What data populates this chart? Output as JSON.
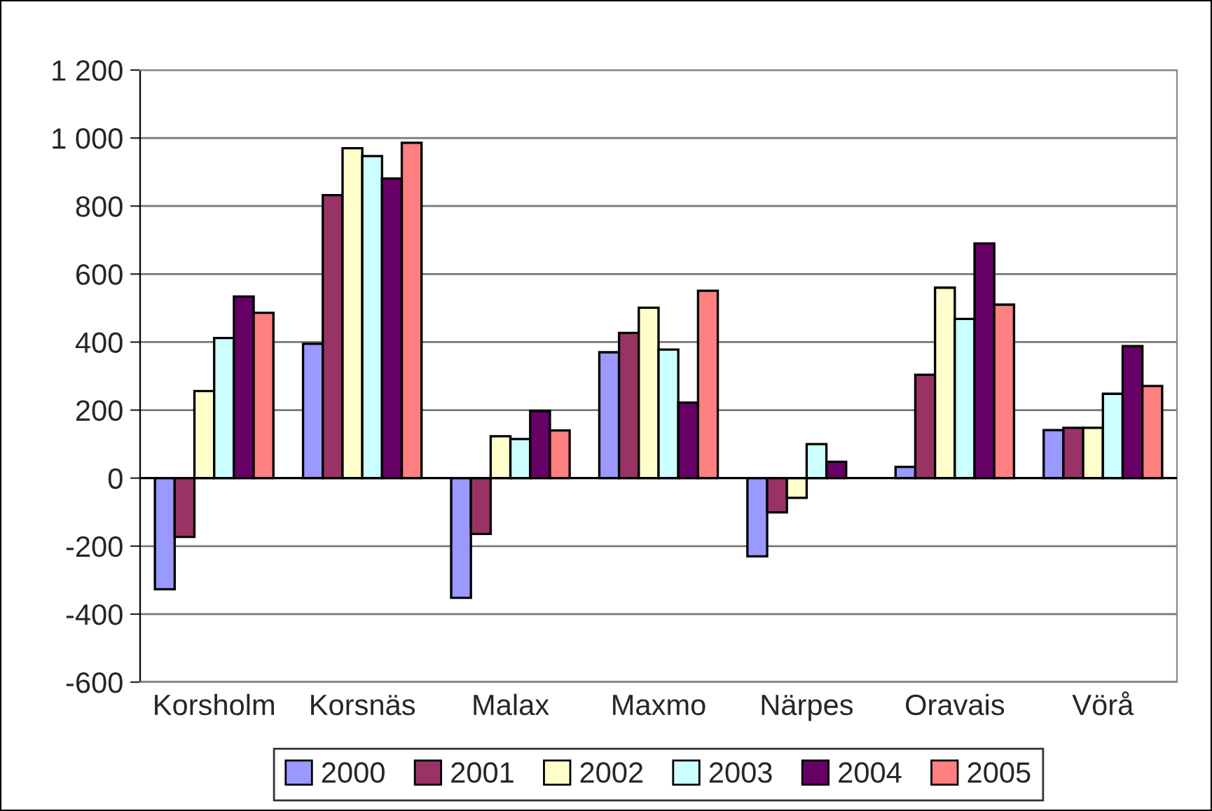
{
  "chart_data": {
    "type": "bar",
    "categories": [
      "Korsholm",
      "Korsnäs",
      "Malax",
      "Maxmo",
      "Närpes",
      "Oravais",
      "Vörå"
    ],
    "series": [
      {
        "name": "2000",
        "color": "#9999ff",
        "values": [
          -327,
          395,
          -352,
          370,
          -230,
          33,
          141
        ]
      },
      {
        "name": "2001",
        "color": "#993366",
        "values": [
          -173,
          832,
          -164,
          427,
          -101,
          304,
          148
        ]
      },
      {
        "name": "2002",
        "color": "#ffffcc",
        "values": [
          256,
          970,
          123,
          501,
          -58,
          560,
          148
        ]
      },
      {
        "name": "2003",
        "color": "#ccffff",
        "values": [
          412,
          947,
          115,
          378,
          100,
          468,
          248
        ]
      },
      {
        "name": "2004",
        "color": "#660066",
        "values": [
          534,
          881,
          197,
          222,
          48,
          690,
          388
        ]
      },
      {
        "name": "2005",
        "color": "#ff8080",
        "values": [
          486,
          986,
          140,
          551,
          null,
          510,
          271
        ]
      }
    ],
    "ylim": [
      -600,
      1200
    ],
    "yticks": [
      -600,
      -400,
      -200,
      0,
      200,
      400,
      600,
      800,
      {
        "value": 1000,
        "label": "1 000"
      },
      {
        "value": 1200,
        "label": "1 200"
      }
    ],
    "grid": "y",
    "legend": "bottom"
  }
}
